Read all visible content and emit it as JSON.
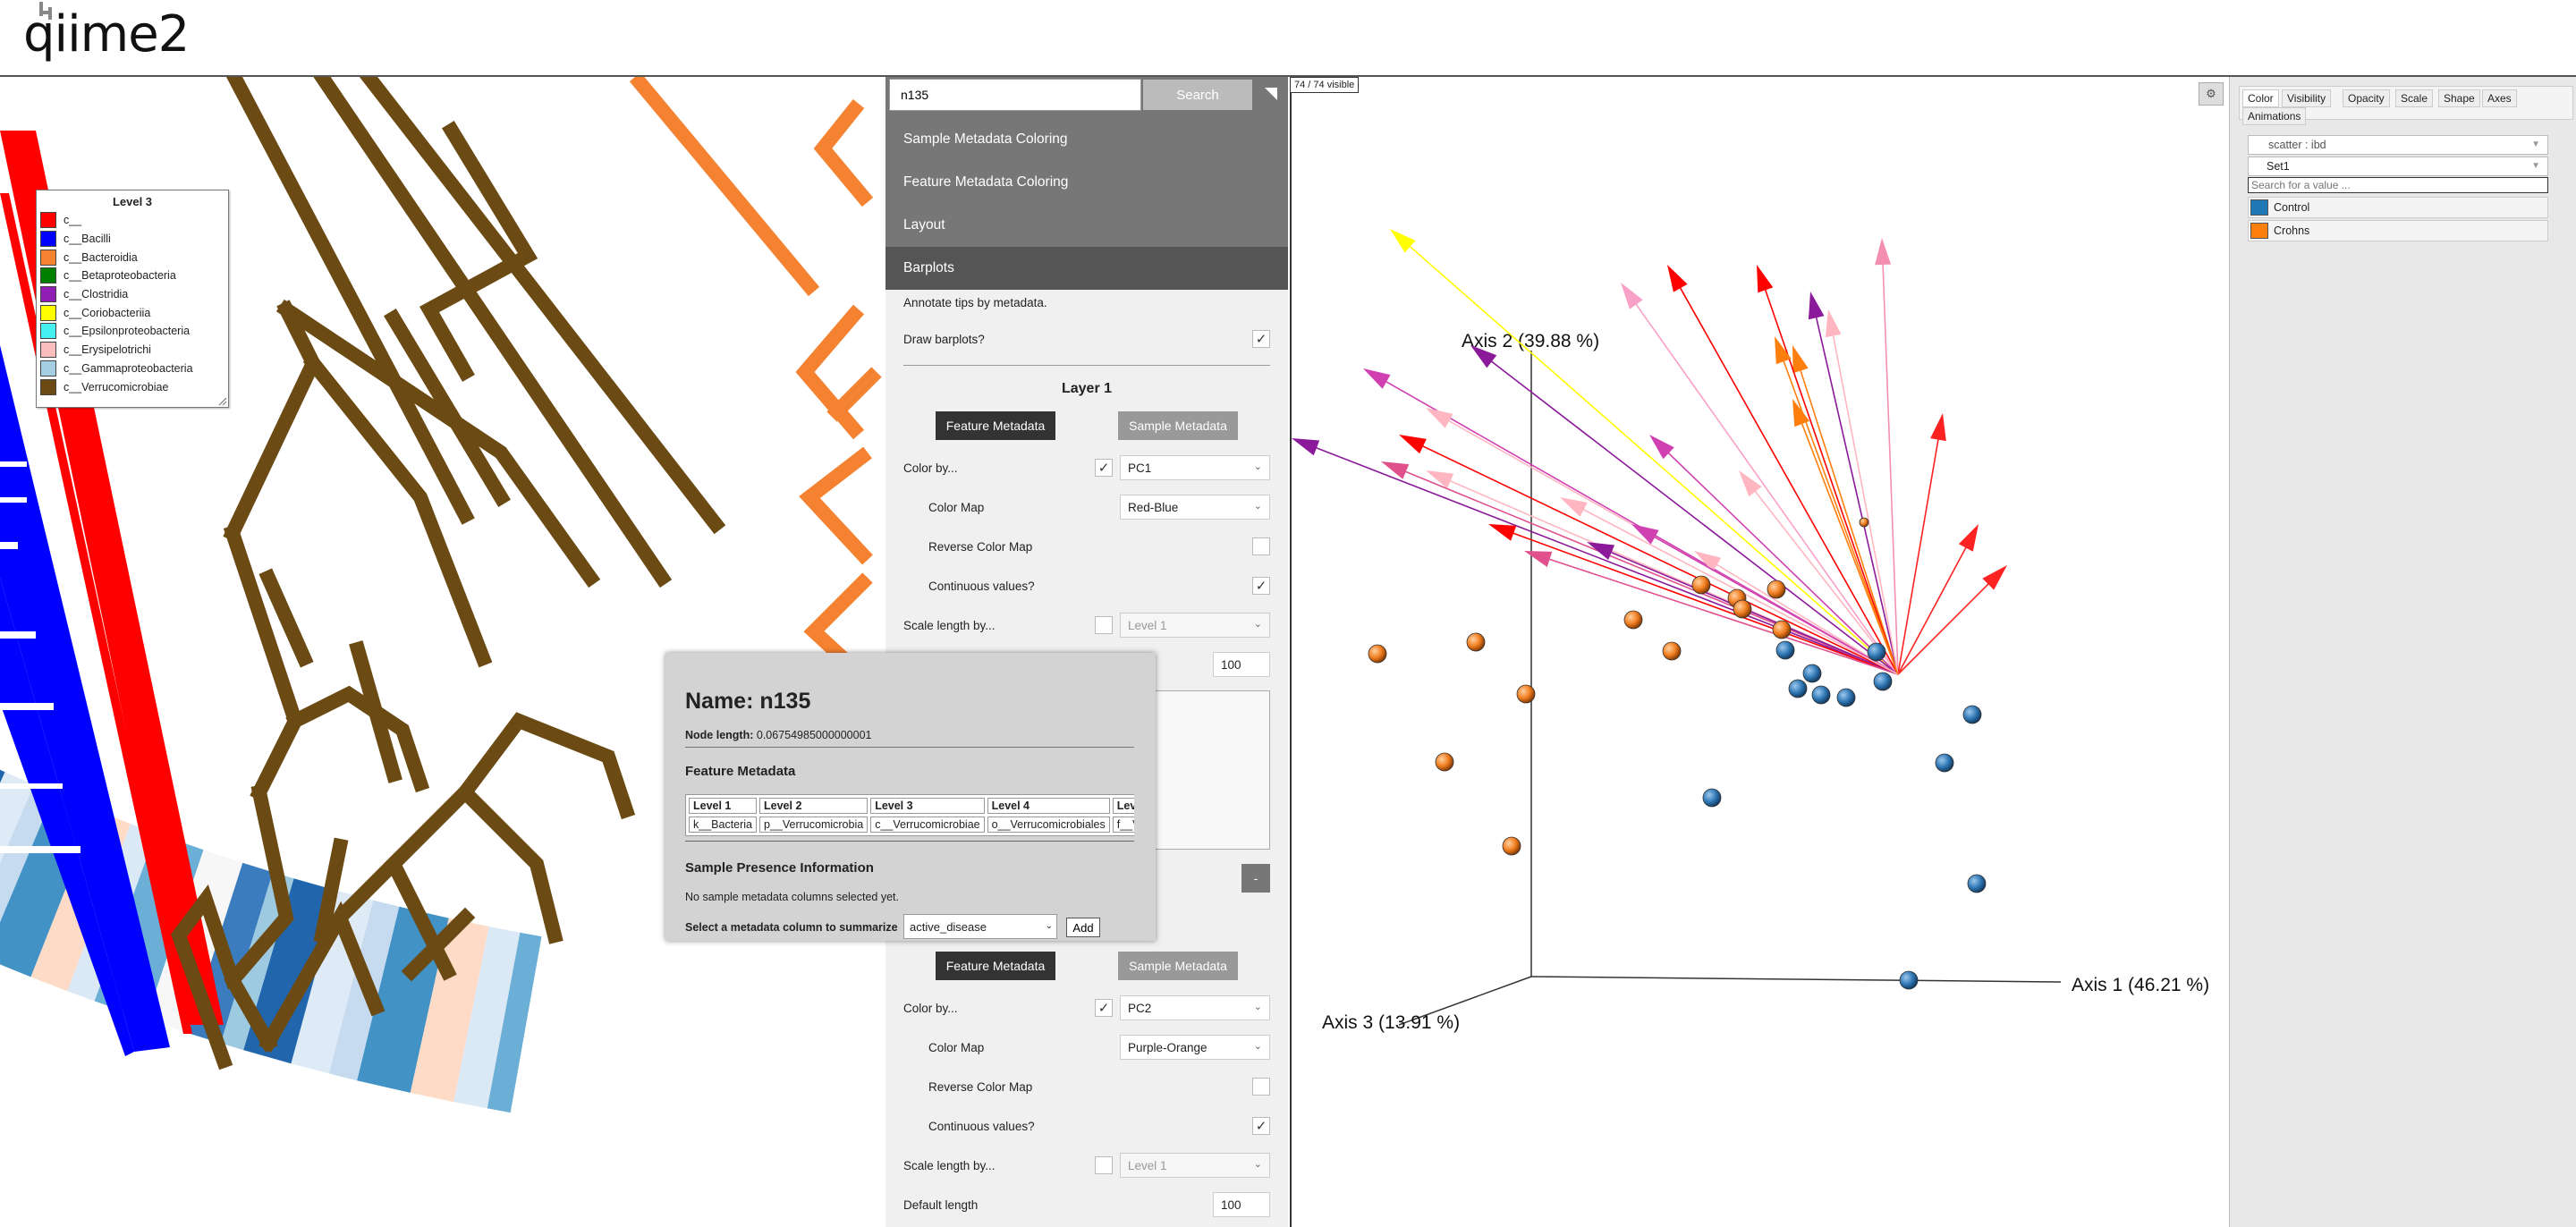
{
  "header": {
    "logo_text": "qiime2"
  },
  "tree": {
    "legend": {
      "title": "Level 3",
      "items": [
        {
          "label": "c__",
          "color": "#ff0000"
        },
        {
          "label": "c__Bacilli",
          "color": "#0000ff"
        },
        {
          "label": "c__Bacteroidia",
          "color": "#f58230"
        },
        {
          "label": "c__Betaproteobacteria",
          "color": "#008000"
        },
        {
          "label": "c__Clostridia",
          "color": "#911eb4"
        },
        {
          "label": "c__Coriobacteriia",
          "color": "#ffff00"
        },
        {
          "label": "c__Epsilonproteobacteria",
          "color": "#46f0f0"
        },
        {
          "label": "c__Erysipelotrichi",
          "color": "#fabebe"
        },
        {
          "label": "c__Gammaproteobacteria",
          "color": "#a6cee3"
        },
        {
          "label": "c__Verrucomicrobiae",
          "color": "#6b4a14"
        }
      ]
    }
  },
  "menu": {
    "search": {
      "value": "n135",
      "button": "Search"
    },
    "sections": [
      "Sample Metadata Coloring",
      "Feature Metadata Coloring",
      "Layout",
      "Barplots"
    ],
    "barplots": {
      "description": "Annotate tips by metadata.",
      "draw_label": "Draw barplots?",
      "draw_checked": "✓",
      "layer1": {
        "title": "Layer 1",
        "feature_btn": "Feature Metadata",
        "sample_btn": "Sample Metadata",
        "color_by_label": "Color by...",
        "color_by_checked": "✓",
        "color_by_value": "PC1",
        "color_map_label": "Color Map",
        "color_map_value": "Red-Blue",
        "reverse_label": "Reverse Color Map",
        "continuous_label": "Continuous values?",
        "continuous_checked": "✓",
        "scale_label": "Scale length by...",
        "scale_value": "Level 1",
        "default_length": "100"
      },
      "layer2": {
        "feature_btn": "Feature Metadata",
        "sample_btn": "Sample Metadata",
        "color_by_label": "Color by...",
        "color_by_checked": "✓",
        "color_by_value": "PC2",
        "color_map_label": "Color Map",
        "color_map_value": "Purple-Orange",
        "reverse_label": "Reverse Color Map",
        "continuous_label": "Continuous values?",
        "continuous_checked": "✓",
        "scale_label": "Scale length by...",
        "scale_value": "Level 1",
        "default_length_label": "Default length",
        "default_length": "100"
      },
      "remove_btn": "-"
    }
  },
  "popup": {
    "title": "Name: n135",
    "node_length_label": "Node length:",
    "node_length": "0.06754985000000001",
    "feature_metadata_title": "Feature Metadata",
    "headers": [
      "Level 1",
      "Level 2",
      "Level 3",
      "Level 4",
      "Level"
    ],
    "row": [
      "k__Bacteria",
      "p__Verrucomicrobia",
      "c__Verrucomicrobiae",
      "o__Verrucomicrobiales",
      "f__Ve"
    ],
    "sample_presence_title": "Sample Presence Information",
    "no_sample_text": "No sample metadata columns selected yet.",
    "select_label": "Select a metadata column to summarize",
    "select_value": "active_disease",
    "add_btn": "Add"
  },
  "emperor": {
    "visible_count": "74 / 74 visible",
    "gear_icon": "⚙",
    "tabs": [
      "Color",
      "Visibility",
      "Opacity",
      "Scale",
      "Shape",
      "Axes",
      "Animations"
    ],
    "scatter_select": "scatter : ibd",
    "set_select": "Set1",
    "value_search_placeholder": "Search for a value ...",
    "values": [
      {
        "label": "Control",
        "color": "#1f77b4"
      },
      {
        "label": "Crohns",
        "color": "#ff7f0e"
      }
    ],
    "axis1": "Axis 1 (46.21 %)",
    "axis2": "Axis 2 (39.88 %)",
    "axis3": "Axis 3 (13.91 %)"
  }
}
